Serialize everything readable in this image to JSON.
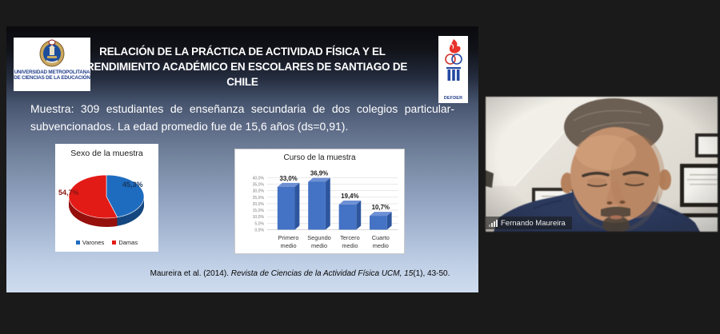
{
  "window": {
    "background": "#1a1a1a"
  },
  "slide": {
    "header": {
      "title_lines": [
        "RELACIÓN DE LA PRÁCTICA DE ACTIVIDAD FÍSICA Y EL",
        "RENDIMIENTO ACADÉMICO EN ESCOLARES DE SANTIAGO DE",
        "CHILE"
      ],
      "left_logo": {
        "icon": "umce-crest-icon",
        "line1": "UNIVERSIDAD METROPOLITANA",
        "line2": "DE CIENCIAS DE LA EDUCACIÓN"
      },
      "right_logo": {
        "icon": "defder-torch-icon",
        "label": "DEFDER"
      }
    },
    "muestra": {
      "line1": "Muestra: 309 estudiantes de enseñanza secundaria de dos colegios particular-",
      "line2": "subvencionados. La edad promedio fue de 15,6 años (ds=0,91)."
    },
    "citation": {
      "normal1": "Maureira et al. (2014). ",
      "italic": "Revista de Ciencias de la Actividad Física UCM, 15",
      "normal2": "(1), 43-50."
    }
  },
  "chart_data": [
    {
      "type": "pie",
      "title": "Sexo de la muestra",
      "labels": [
        "Varones",
        "Damas"
      ],
      "values": [
        45.3,
        54.7
      ],
      "value_labels": [
        "45,3%",
        "54,7%"
      ],
      "colors": [
        "#1e6cc0",
        "#e31b17"
      ],
      "depth_colors": [
        "#14477f",
        "#96100d"
      ],
      "legend_position": "bottom",
      "effect": "3d"
    },
    {
      "type": "bar",
      "title": "Curso de la muestra",
      "categories": [
        "Primero medio",
        "Segundo medio",
        "Tercero medio",
        "Cuarto medio"
      ],
      "values": [
        33.0,
        36.9,
        19.4,
        10.7
      ],
      "value_labels": [
        "33,0%",
        "36,9%",
        "19,4%",
        "10,7%"
      ],
      "ylim": [
        0,
        40
      ],
      "ytick_labels": [
        "0,0%",
        "5,0%",
        "10,0%",
        "15,0%",
        "20,0%",
        "25,0%",
        "30,0%",
        "35,0%",
        "40,0%"
      ],
      "bar_color_front": "#4472c4",
      "bar_color_side": "#2e569e",
      "bar_color_top": "#6d8fd4",
      "grid": true,
      "effect": "3d",
      "legend_position": "none"
    }
  ],
  "video": {
    "participant_name": "Fernando Maureira",
    "signal_icon": "signal-bars-icon"
  }
}
